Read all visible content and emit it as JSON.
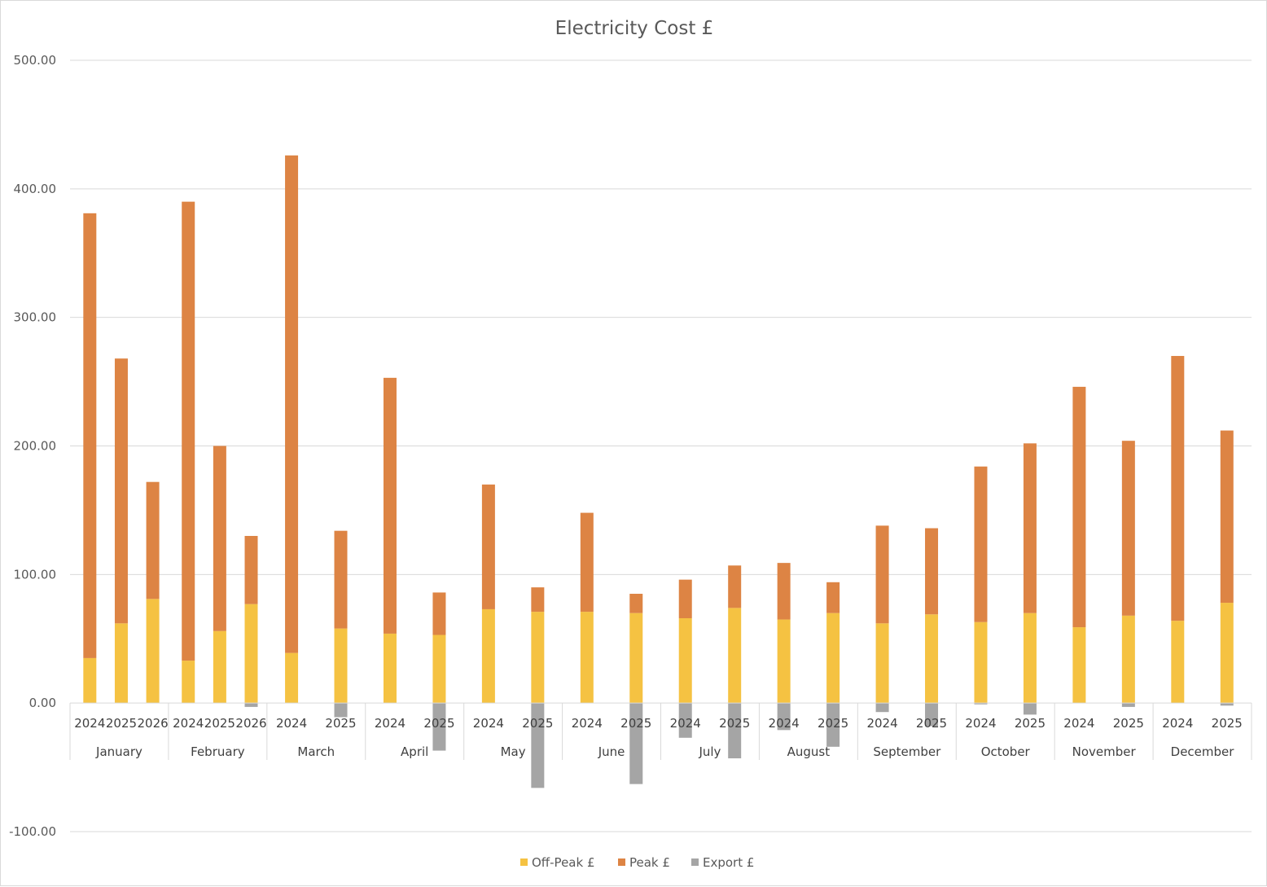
{
  "chart_data": {
    "type": "bar",
    "stacked": true,
    "title": "Electricity Cost £",
    "xlabel": "",
    "ylabel": "",
    "ylim": [
      -100,
      500
    ],
    "yticks": [
      "-100.00",
      "0.00",
      "100.00",
      "200.00",
      "300.00",
      "400.00",
      "500.00"
    ],
    "grid": true,
    "legend_position": "bottom",
    "groups": [
      {
        "label": "January",
        "years": [
          "2024",
          "2025",
          "2026"
        ]
      },
      {
        "label": "February",
        "years": [
          "2024",
          "2025",
          "2026"
        ]
      },
      {
        "label": "March",
        "years": [
          "2024",
          "2025"
        ]
      },
      {
        "label": "April",
        "years": [
          "2024",
          "2025"
        ]
      },
      {
        "label": "May",
        "years": [
          "2024",
          "2025"
        ]
      },
      {
        "label": "June",
        "years": [
          "2024",
          "2025"
        ]
      },
      {
        "label": "July",
        "years": [
          "2024",
          "2025"
        ]
      },
      {
        "label": "August",
        "years": [
          "2024",
          "2025"
        ]
      },
      {
        "label": "September",
        "years": [
          "2024",
          "2025"
        ]
      },
      {
        "label": "October",
        "years": [
          "2024",
          "2025"
        ]
      },
      {
        "label": "November",
        "years": [
          "2024",
          "2025"
        ]
      },
      {
        "label": "December",
        "years": [
          "2024",
          "2025"
        ]
      }
    ],
    "series": [
      {
        "name": "Off-Peak £",
        "color": "#F5C242",
        "values": [
          35,
          62,
          81,
          33,
          56,
          77,
          39,
          58,
          54,
          53,
          73,
          71,
          71,
          70,
          66,
          74,
          65,
          70,
          62,
          69,
          63,
          70,
          59,
          68,
          64,
          78
        ]
      },
      {
        "name": "Peak £",
        "color": "#DD8444",
        "values": [
          346,
          206,
          91,
          357,
          144,
          53,
          387,
          76,
          199,
          33,
          97,
          19,
          77,
          15,
          30,
          33,
          44,
          24,
          76,
          67,
          121,
          132,
          187,
          136,
          206,
          134
        ]
      },
      {
        "name": "Export £",
        "color": "#A5A5A5",
        "values": [
          0,
          0,
          0,
          0,
          0,
          -3,
          0,
          -11,
          0,
          -37,
          0,
          -66,
          0,
          -63,
          -27,
          -43,
          -21,
          -34,
          -7,
          -18,
          -1,
          -9,
          0,
          -3,
          0,
          -2
        ]
      }
    ]
  }
}
